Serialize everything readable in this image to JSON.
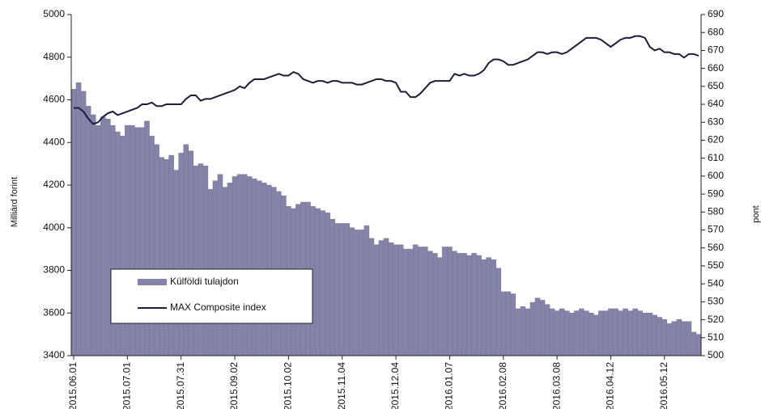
{
  "chart_data": {
    "type": "bar_line",
    "y_label": "Milliárd forint",
    "y2_label": "pont",
    "categories": [
      "2015.06.01",
      null,
      null,
      null,
      null,
      null,
      null,
      null,
      null,
      null,
      null,
      "2015.07.01",
      null,
      null,
      null,
      null,
      null,
      null,
      null,
      null,
      null,
      null,
      "2015.07.31",
      null,
      null,
      null,
      null,
      null,
      null,
      null,
      null,
      null,
      null,
      "2015.09.02",
      null,
      null,
      null,
      null,
      null,
      null,
      null,
      null,
      null,
      null,
      "2015.10.02",
      null,
      null,
      null,
      null,
      null,
      null,
      null,
      null,
      null,
      null,
      "2015.11.04",
      null,
      null,
      null,
      null,
      null,
      null,
      null,
      null,
      null,
      null,
      "2015.12.04",
      null,
      null,
      null,
      null,
      null,
      null,
      null,
      null,
      null,
      null,
      "2016.01.07",
      null,
      null,
      null,
      null,
      null,
      null,
      null,
      null,
      null,
      null,
      "2016.02.08",
      null,
      null,
      null,
      null,
      null,
      null,
      null,
      null,
      null,
      null,
      "2016.03.08",
      null,
      null,
      null,
      null,
      null,
      null,
      null,
      null,
      null,
      null,
      "2016.04.12",
      null,
      null,
      null,
      null,
      null,
      null,
      null,
      null,
      null,
      null,
      "2016.05.12",
      null,
      null,
      null,
      null,
      null,
      null,
      null
    ],
    "series": [
      {
        "name": "Külföldi tulajdon",
        "type": "bar",
        "color": "#8584a8",
        "values": [
          4650,
          4680,
          4640,
          4570,
          4530,
          4480,
          4520,
          4510,
          4480,
          4450,
          4430,
          4480,
          4480,
          4470,
          4470,
          4500,
          4430,
          4390,
          4330,
          4320,
          4340,
          4270,
          4350,
          4390,
          4360,
          4290,
          4300,
          4290,
          4180,
          4220,
          4250,
          4190,
          4210,
          4240,
          4250,
          4250,
          4240,
          4230,
          4220,
          4210,
          4200,
          4190,
          4170,
          4150,
          4100,
          4090,
          4110,
          4120,
          4120,
          4100,
          4090,
          4080,
          4070,
          4040,
          4020,
          4020,
          4020,
          4000,
          3990,
          3990,
          4010,
          3950,
          3920,
          3940,
          3950,
          3930,
          3920,
          3920,
          3900,
          3900,
          3920,
          3910,
          3910,
          3890,
          3880,
          3860,
          3910,
          3910,
          3890,
          3880,
          3880,
          3870,
          3880,
          3870,
          3850,
          3860,
          3850,
          3810,
          3700,
          3700,
          3690,
          3620,
          3630,
          3620,
          3650,
          3670,
          3660,
          3640,
          3620,
          3610,
          3620,
          3610,
          3600,
          3610,
          3620,
          3610,
          3600,
          3590,
          3610,
          3610,
          3620,
          3620,
          3610,
          3620,
          3610,
          3620,
          3610,
          3600,
          3600,
          3590,
          3580,
          3570,
          3550,
          3560,
          3570,
          3560,
          3560,
          3510,
          3500
        ]
      },
      {
        "name": "MAX Composite index",
        "type": "line",
        "axis": "y2",
        "color": "#1c1c3c",
        "values": [
          638,
          638,
          636,
          632,
          629,
          630,
          633,
          635,
          636,
          634,
          635,
          636,
          637,
          638,
          640,
          640,
          641,
          639,
          639,
          640,
          640,
          640,
          640,
          643,
          645,
          645,
          642,
          643,
          643,
          644,
          645,
          646,
          647,
          648,
          650,
          649,
          652,
          654,
          654,
          654,
          655,
          656,
          657,
          656,
          656,
          658,
          657,
          654,
          653,
          652,
          653,
          653,
          652,
          653,
          653,
          652,
          652,
          652,
          651,
          651,
          652,
          653,
          654,
          654,
          653,
          653,
          652,
          647,
          647,
          644,
          644,
          646,
          649,
          652,
          653,
          653,
          653,
          653,
          657,
          656,
          657,
          656,
          656,
          657,
          659,
          663,
          665,
          665,
          664,
          662,
          662,
          663,
          664,
          665,
          667,
          669,
          669,
          668,
          669,
          669,
          668,
          669,
          671,
          673,
          675,
          677,
          677,
          677,
          676,
          674,
          672,
          674,
          676,
          677,
          677,
          678,
          678,
          677,
          672,
          670,
          671,
          669,
          669,
          668,
          668,
          666,
          668,
          668,
          667
        ]
      }
    ],
    "ylim": [
      3400,
      5000
    ],
    "yticks": [
      3400,
      3600,
      3800,
      4000,
      4200,
      4400,
      4600,
      4800,
      5000
    ],
    "y2lim": [
      500,
      690
    ],
    "y2ticks": [
      500,
      510,
      520,
      530,
      540,
      550,
      560,
      570,
      580,
      590,
      600,
      610,
      620,
      630,
      640,
      650,
      660,
      670,
      680,
      690
    ]
  }
}
